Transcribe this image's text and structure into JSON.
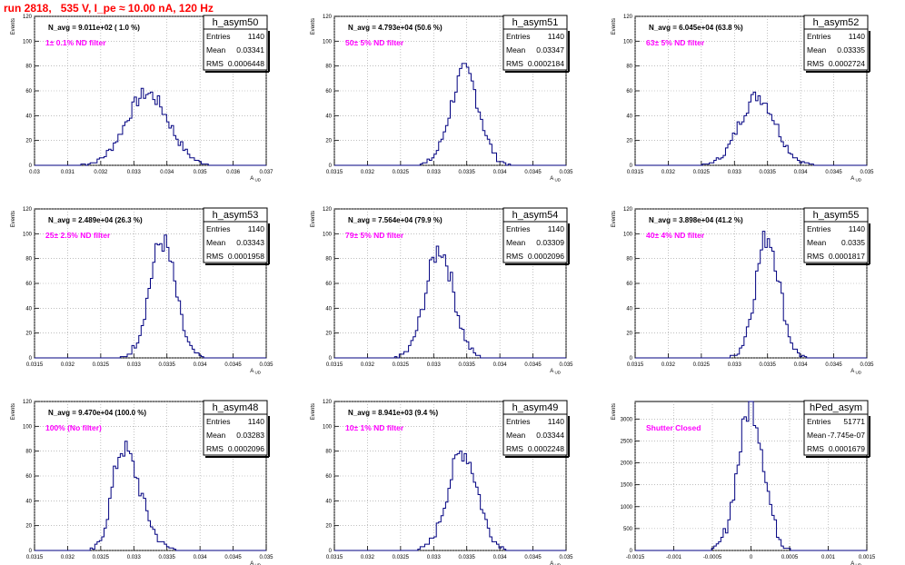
{
  "run_title": "run 2818,   535 V, I_pe ≈ 10.00 nA, 120 Hz",
  "colors": {
    "hist": "#000080",
    "filter_label": "#ff00ff",
    "title": "#ff0000",
    "grid": "#999999",
    "axis": "#000000"
  },
  "stat_labels": {
    "entries": "Entries",
    "mean": "Mean",
    "rms": "RMS"
  },
  "chart_data": [
    {
      "type": "bar",
      "title": "h_asym50",
      "xlabel": "A_UD",
      "ylabel": "Events",
      "navg": "N_avg = 9.011e+02 ( 1.0 %)",
      "filter": "1± 0.1% ND filter",
      "stats": {
        "entries": "1140",
        "mean": "0.03341",
        "rms": "0.0006448"
      },
      "xlim": [
        0.03,
        0.037
      ],
      "ylim": [
        0,
        120
      ],
      "xticks": [
        "0.03",
        "0.031",
        "0.032",
        "0.033",
        "0.034",
        "0.035",
        "0.036",
        "0.037"
      ],
      "yticks": [
        "0",
        "20",
        "40",
        "60",
        "80",
        "100",
        "120"
      ],
      "mean_num": 0.03341,
      "rms_num": 0.0006448,
      "peak": 58,
      "entries_num": 1140,
      "shape": "normal"
    },
    {
      "type": "bar",
      "title": "h_asym51",
      "xlabel": "A_UD",
      "ylabel": "Events",
      "navg": "N_avg = 4.793e+04 (50.6 %)",
      "filter": "50± 5% ND filter",
      "stats": {
        "entries": "1140",
        "mean": "0.03347",
        "rms": "0.0002184"
      },
      "xlim": [
        0.0315,
        0.035
      ],
      "ylim": [
        0,
        120
      ],
      "xticks": [
        "0.0315",
        "0.032",
        "0.0325",
        "0.033",
        "0.0335",
        "0.034",
        "0.0345",
        "0.035"
      ],
      "yticks": [
        "0",
        "20",
        "40",
        "60",
        "80",
        "100",
        "120"
      ],
      "mean_num": 0.03347,
      "rms_num": 0.0002184,
      "peak": 75,
      "entries_num": 1140,
      "shape": "normal"
    },
    {
      "type": "bar",
      "title": "h_asym52",
      "xlabel": "A_UD",
      "ylabel": "Events",
      "navg": "N_avg = 6.045e+04 (63.8 %)",
      "filter": "63± 5% ND filter",
      "stats": {
        "entries": "1140",
        "mean": "0.03335",
        "rms": "0.0002724"
      },
      "xlim": [
        0.0315,
        0.035
      ],
      "ylim": [
        0,
        120
      ],
      "xticks": [
        "0.0315",
        "0.032",
        "0.0325",
        "0.033",
        "0.0335",
        "0.034",
        "0.0345",
        "0.035"
      ],
      "yticks": [
        "0",
        "20",
        "40",
        "60",
        "80",
        "100",
        "120"
      ],
      "mean_num": 0.03335,
      "rms_num": 0.0002724,
      "peak": 56,
      "entries_num": 1140,
      "shape": "normal"
    },
    {
      "type": "bar",
      "title": "h_asym53",
      "xlabel": "A_UD",
      "ylabel": "Events",
      "navg": "N_avg = 2.489e+04 (26.3 %)",
      "filter": "25± 2.5% ND filter",
      "stats": {
        "entries": "1140",
        "mean": "0.03343",
        "rms": "0.0001958"
      },
      "xlim": [
        0.0315,
        0.035
      ],
      "ylim": [
        0,
        120
      ],
      "xticks": [
        "0.0315",
        "0.032",
        "0.0325",
        "0.033",
        "0.0335",
        "0.034",
        "0.0345",
        "0.035"
      ],
      "yticks": [
        "0",
        "20",
        "40",
        "60",
        "80",
        "100",
        "120"
      ],
      "mean_num": 0.03343,
      "rms_num": 0.0001958,
      "peak": 94,
      "entries_num": 1140,
      "shape": "normal"
    },
    {
      "type": "bar",
      "title": "h_asym54",
      "xlabel": "A_UD",
      "ylabel": "Events",
      "navg": "N_avg = 7.564e+04 (79.9 %)",
      "filter": "79± 5% ND filter",
      "stats": {
        "entries": "1140",
        "mean": "0.03309",
        "rms": "0.0002096"
      },
      "xlim": [
        0.0315,
        0.035
      ],
      "ylim": [
        0,
        120
      ],
      "xticks": [
        "0.0315",
        "0.032",
        "0.0325",
        "0.033",
        "0.0335",
        "0.034",
        "0.0345",
        "0.035"
      ],
      "yticks": [
        "0",
        "20",
        "40",
        "60",
        "80",
        "100",
        "120"
      ],
      "mean_num": 0.03309,
      "rms_num": 0.0002096,
      "peak": 88,
      "entries_num": 1140,
      "shape": "normal"
    },
    {
      "type": "bar",
      "title": "h_asym55",
      "xlabel": "A_UD",
      "ylabel": "Events",
      "navg": "N_avg = 3.898e+04 (41.2 %)",
      "filter": "40± 4% ND filter",
      "stats": {
        "entries": "1140",
        "mean": "0.0335",
        "rms": "0.0001817"
      },
      "xlim": [
        0.0315,
        0.035
      ],
      "ylim": [
        0,
        120
      ],
      "xticks": [
        "0.0315",
        "0.032",
        "0.0325",
        "0.033",
        "0.0335",
        "0.034",
        "0.0345",
        "0.035"
      ],
      "yticks": [
        "0",
        "20",
        "40",
        "60",
        "80",
        "100",
        "120"
      ],
      "mean_num": 0.0335,
      "rms_num": 0.0001817,
      "peak": 98,
      "entries_num": 1140,
      "shape": "normal"
    },
    {
      "type": "bar",
      "title": "h_asym48",
      "xlabel": "A_UD",
      "ylabel": "Events",
      "navg": "N_avg = 9.470e+04 (100.0 %)",
      "filter": "100% (No filter)",
      "stats": {
        "entries": "1140",
        "mean": "0.03283",
        "rms": "0.0002096"
      },
      "xlim": [
        0.0315,
        0.035
      ],
      "ylim": [
        0,
        120
      ],
      "xticks": [
        "0.0315",
        "0.032",
        "0.0325",
        "0.033",
        "0.0335",
        "0.034",
        "0.0345",
        "0.035"
      ],
      "yticks": [
        "0",
        "20",
        "40",
        "60",
        "80",
        "100",
        "120"
      ],
      "mean_num": 0.03283,
      "rms_num": 0.0002096,
      "peak": 82,
      "entries_num": 1140,
      "shape": "skewed"
    },
    {
      "type": "bar",
      "title": "h_asym49",
      "xlabel": "A_UD",
      "ylabel": "Events",
      "navg": "N_avg = 8.941e+03 (9.4 %)",
      "filter": "10± 1% ND filter",
      "stats": {
        "entries": "1140",
        "mean": "0.03344",
        "rms": "0.0002248"
      },
      "xlim": [
        0.0315,
        0.035
      ],
      "ylim": [
        0,
        120
      ],
      "xticks": [
        "0.0315",
        "0.032",
        "0.0325",
        "0.033",
        "0.0335",
        "0.034",
        "0.0345",
        "0.035"
      ],
      "yticks": [
        "0",
        "20",
        "40",
        "60",
        "80",
        "100",
        "120"
      ],
      "mean_num": 0.03344,
      "rms_num": 0.0002248,
      "peak": 80,
      "entries_num": 1140,
      "shape": "normal"
    },
    {
      "type": "bar",
      "title": "hPed_asym",
      "xlabel": "A_UD",
      "ylabel": "Events",
      "navg": "",
      "filter": "Shutter Closed",
      "stats": {
        "entries": "51771",
        "mean": "-7.745e-07",
        "rms": "0.0001679"
      },
      "xlim": [
        -0.0015,
        0.0015
      ],
      "ylim": [
        0,
        3400
      ],
      "xticks": [
        "-0.0015",
        "-0.001",
        "-0.0005",
        "0",
        "0.0005",
        "0.001",
        "0.0015"
      ],
      "yticks": [
        "0",
        "500",
        "1000",
        "1500",
        "2000",
        "2500",
        "3000"
      ],
      "mean_num": 0.0,
      "rms_num": 0.0001679,
      "peak": 3300,
      "entries_num": 51771,
      "shape": "normal"
    }
  ]
}
